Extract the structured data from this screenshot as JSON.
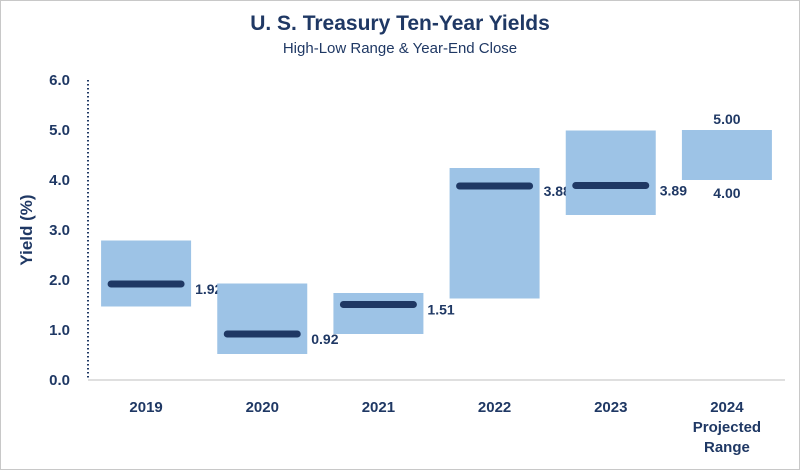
{
  "chart_data": {
    "type": "bar",
    "title": "U. S. Treasury Ten-Year Yields",
    "subtitle": "High-Low Range & Year-End Close",
    "ylabel": "Yield (%)",
    "xlabel": "",
    "ylim": [
      0,
      6
    ],
    "yticks": [
      "0.0",
      "1.0",
      "2.0",
      "3.0",
      "4.0",
      "5.0",
      "6.0"
    ],
    "categories": [
      [
        "2019"
      ],
      [
        "2020"
      ],
      [
        "2021"
      ],
      [
        "2022"
      ],
      [
        "2023"
      ],
      [
        "2024",
        "Projected",
        "Range"
      ]
    ],
    "series": [
      {
        "name": "",
        "low": [
          1.47,
          0.52,
          0.92,
          1.63,
          3.3,
          4.0
        ],
        "high": [
          2.79,
          1.93,
          1.74,
          4.24,
          4.99,
          5.0
        ]
      },
      {
        "name": "",
        "close": [
          1.92,
          0.92,
          1.51,
          3.88,
          3.89,
          null
        ]
      }
    ],
    "data_labels": {
      "close": [
        "1.92",
        "0.92",
        "1.51",
        "3.88",
        "3.89",
        ""
      ],
      "projected_high": "5.00",
      "projected_low": "4.00"
    },
    "colors": {
      "range": "#9dc3e6",
      "close": "#1f3864",
      "text": "#1f3864"
    },
    "grid": false,
    "legend": "none"
  }
}
